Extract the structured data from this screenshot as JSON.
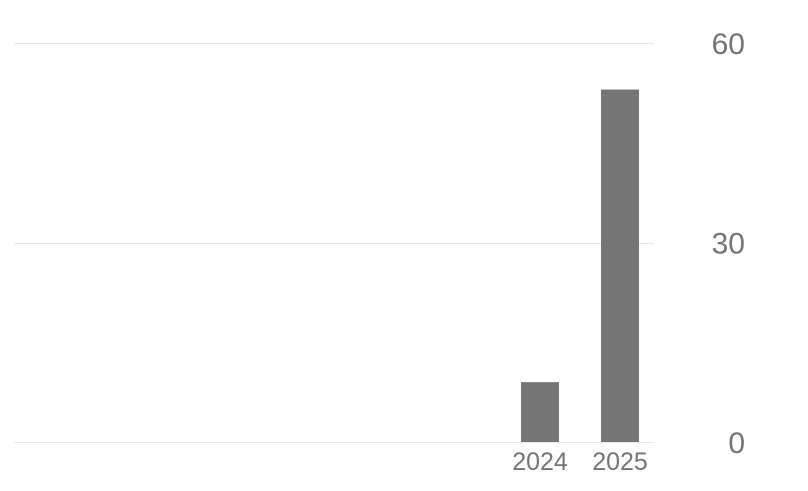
{
  "chart_data": {
    "type": "bar",
    "categories": [
      "2024",
      "2025"
    ],
    "values": [
      9,
      53
    ],
    "ylim": [
      0,
      60
    ],
    "yticks": [
      0,
      30,
      60
    ],
    "y_axis_position": "right",
    "grid": true,
    "bar_color": "#757575",
    "grid_color": "#e6e6e6",
    "text_color": "#757575"
  }
}
